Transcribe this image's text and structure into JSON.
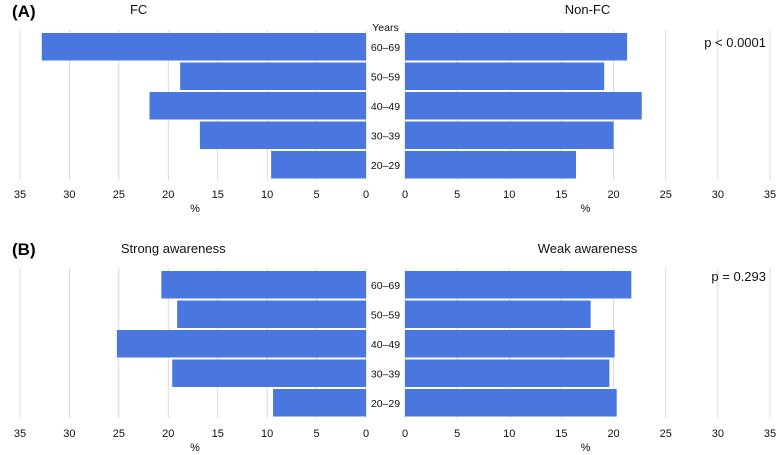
{
  "chart_data": [
    {
      "type": "bar",
      "orientation": "horizontal-population-pyramid",
      "panel_label": "(A)",
      "center_header": "Years",
      "categories": [
        "60–69",
        "50–59",
        "40–49",
        "30–39",
        "20–29"
      ],
      "series": [
        {
          "name": "FC",
          "side": "left",
          "values": [
            32.8,
            18.8,
            21.9,
            16.8,
            9.6
          ]
        },
        {
          "name": "Non-FC",
          "side": "right",
          "values": [
            21.3,
            19.1,
            22.7,
            20.0,
            16.4
          ]
        }
      ],
      "xticks": [
        0,
        5,
        10,
        15,
        20,
        25,
        30,
        35
      ],
      "xlabel": "%",
      "xlim": [
        0,
        35
      ],
      "annotation": "p < 0.0001",
      "grid": true
    },
    {
      "type": "bar",
      "orientation": "horizontal-population-pyramid",
      "panel_label": "(B)",
      "center_header": "",
      "categories": [
        "60–69",
        "50–59",
        "40–49",
        "30–39",
        "20–29"
      ],
      "series": [
        {
          "name": "Strong awareness",
          "side": "left",
          "values": [
            20.7,
            19.1,
            25.2,
            19.6,
            9.4
          ]
        },
        {
          "name": "Weak awareness",
          "side": "right",
          "values": [
            21.7,
            17.8,
            20.1,
            19.6,
            20.3
          ]
        }
      ],
      "xticks": [
        0,
        5,
        10,
        15,
        20,
        25,
        30,
        35
      ],
      "xlabel": "%",
      "xlim": [
        0,
        35
      ],
      "annotation": "p = 0.293",
      "grid": true
    }
  ]
}
